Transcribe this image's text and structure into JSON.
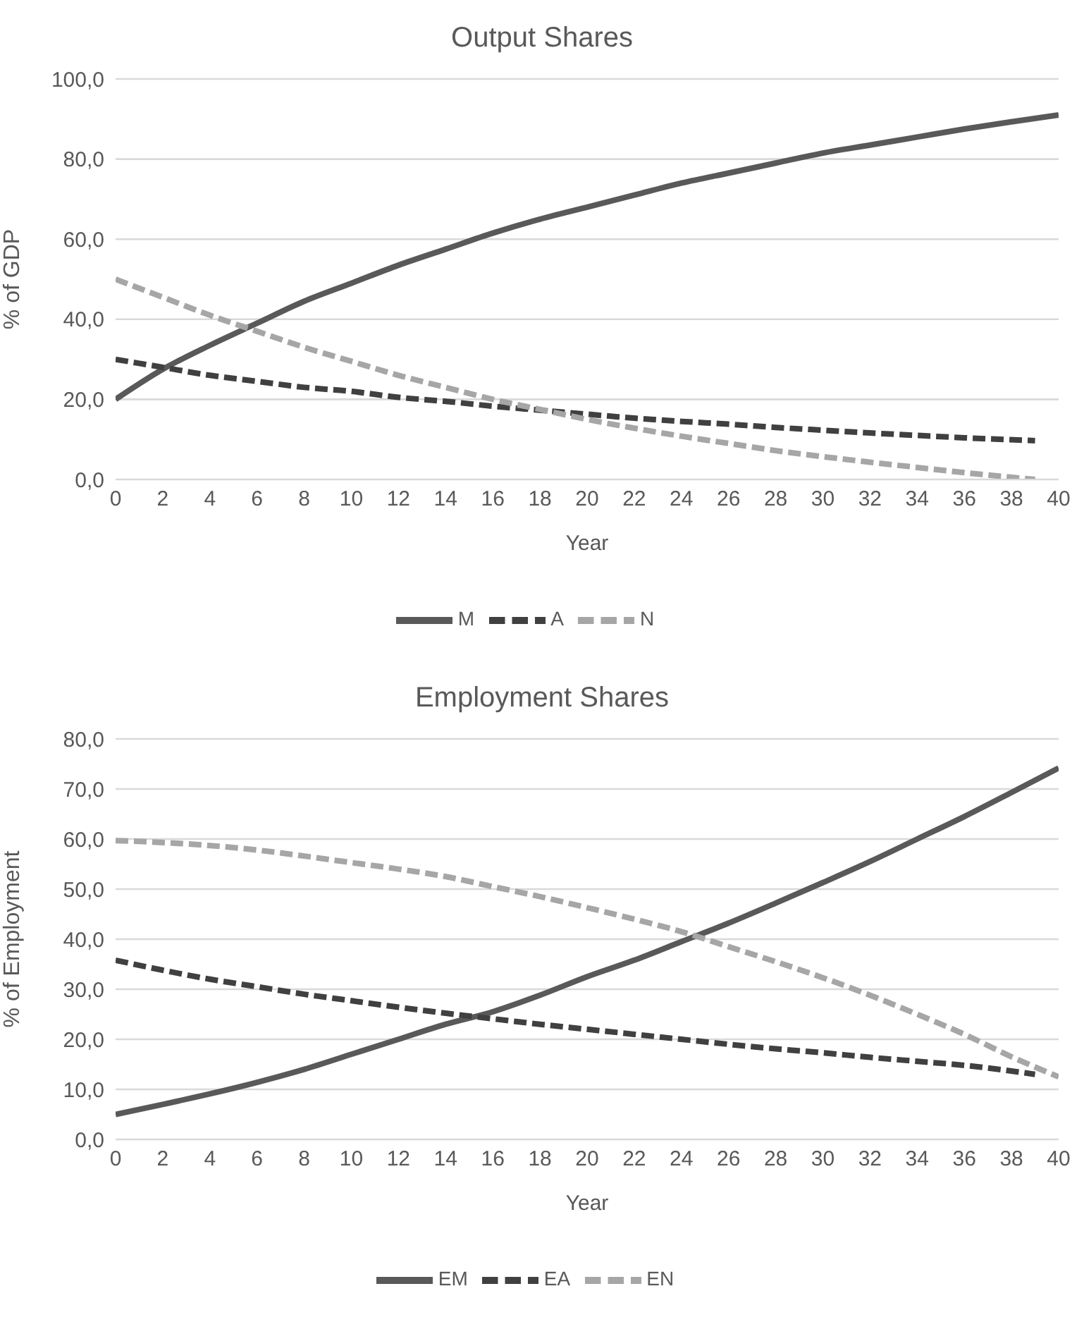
{
  "chart_data": [
    {
      "type": "line",
      "title": "Output Shares",
      "xlabel": "Year",
      "ylabel": "% of GDP",
      "xlim": [
        0,
        40
      ],
      "xticks": [
        0,
        2,
        4,
        6,
        8,
        10,
        12,
        14,
        16,
        18,
        20,
        22,
        24,
        26,
        28,
        30,
        32,
        34,
        36,
        38,
        40
      ],
      "ylim": [
        0,
        100
      ],
      "yticks": [
        {
          "value": 0,
          "label": "0,0"
        },
        {
          "value": 20,
          "label": "20,0"
        },
        {
          "value": 40,
          "label": "40,0"
        },
        {
          "value": 60,
          "label": "60,0"
        },
        {
          "value": 80,
          "label": "80,0"
        },
        {
          "value": 100,
          "label": "100,0"
        }
      ],
      "grid": "y",
      "legend": "bottom",
      "marker": "none",
      "series": [
        {
          "name": "M",
          "color": "#595959",
          "line_style": "solid",
          "x": [
            0,
            2,
            4,
            6,
            8,
            10,
            12,
            14,
            16,
            18,
            20,
            22,
            24,
            26,
            28,
            30,
            32,
            34,
            36,
            38,
            40
          ],
          "values": [
            20,
            27.5,
            33.5,
            39,
            44.5,
            49,
            53.5,
            57.5,
            61.5,
            65,
            68,
            71,
            74,
            76.5,
            79,
            81.5,
            83.5,
            85.5,
            87.5,
            89.3,
            91
          ]
        },
        {
          "name": "A",
          "color": "#404040",
          "line_style": "dashed",
          "x": [
            0,
            2,
            4,
            6,
            8,
            10,
            12,
            14,
            16,
            18,
            20,
            22,
            24,
            26,
            28,
            30,
            32,
            34,
            36,
            39
          ],
          "values": [
            30,
            28,
            26,
            24.5,
            23,
            22,
            20.5,
            19.5,
            18.3,
            17.3,
            16.3,
            15.3,
            14.5,
            13.8,
            13,
            12.3,
            11.6,
            11,
            10.4,
            9.7
          ]
        },
        {
          "name": "N",
          "color": "#a6a6a6",
          "line_style": "dashed",
          "x": [
            0,
            2,
            4,
            6,
            8,
            10,
            12,
            14,
            16,
            18,
            20,
            22,
            24,
            26,
            28,
            30,
            32,
            34,
            36,
            39
          ],
          "values": [
            50,
            45.5,
            41,
            37,
            33,
            29.5,
            26,
            23,
            20,
            17.5,
            15,
            12.8,
            10.8,
            9,
            7.2,
            5.7,
            4.3,
            3,
            1.7,
            0
          ]
        }
      ]
    },
    {
      "type": "line",
      "title": "Employment Shares",
      "xlabel": "Year",
      "ylabel": "% of Employment",
      "xlim": [
        0,
        40
      ],
      "xticks": [
        0,
        2,
        4,
        6,
        8,
        10,
        12,
        14,
        16,
        18,
        20,
        22,
        24,
        26,
        28,
        30,
        32,
        34,
        36,
        38,
        40
      ],
      "ylim": [
        0,
        80
      ],
      "yticks": [
        {
          "value": 0,
          "label": "0,0"
        },
        {
          "value": 10,
          "label": "10,0"
        },
        {
          "value": 20,
          "label": "20,0"
        },
        {
          "value": 30,
          "label": "30,0"
        },
        {
          "value": 40,
          "label": "40,0"
        },
        {
          "value": 50,
          "label": "50,0"
        },
        {
          "value": 60,
          "label": "60,0"
        },
        {
          "value": 70,
          "label": "70,0"
        },
        {
          "value": 80,
          "label": "80,0"
        }
      ],
      "grid": "y",
      "legend": "bottom",
      "marker": "none",
      "series": [
        {
          "name": "EM",
          "color": "#595959",
          "line_style": "solid",
          "x": [
            0,
            2,
            4,
            6,
            8,
            10,
            12,
            14,
            16,
            18,
            20,
            22,
            24,
            26,
            28,
            30,
            32,
            34,
            36,
            38,
            40
          ],
          "values": [
            5,
            7,
            9.1,
            11.4,
            14,
            17,
            20,
            23,
            25.5,
            28.8,
            32.5,
            35.8,
            39.5,
            43.2,
            47.2,
            51.3,
            55.5,
            60,
            64.5,
            69.3,
            74.2
          ]
        },
        {
          "name": "EA",
          "color": "#404040",
          "line_style": "dashed",
          "x": [
            0,
            2,
            4,
            6,
            8,
            10,
            12,
            14,
            16,
            18,
            20,
            22,
            24,
            26,
            28,
            30,
            32,
            34,
            36,
            39
          ],
          "values": [
            35.8,
            33.8,
            32,
            30.5,
            29,
            27.7,
            26.4,
            25.2,
            24.1,
            23,
            22,
            21,
            20,
            19,
            18.1,
            17.3,
            16.4,
            15.6,
            14.8,
            13
          ]
        },
        {
          "name": "EN",
          "color": "#a6a6a6",
          "line_style": "dashed",
          "x": [
            0,
            2,
            4,
            6,
            8,
            10,
            12,
            14,
            16,
            18,
            20,
            22,
            24,
            26,
            28,
            30,
            32,
            34,
            36,
            38,
            40
          ],
          "values": [
            59.7,
            59.3,
            58.7,
            57.8,
            56.6,
            55.3,
            54,
            52.5,
            50.5,
            48.5,
            46.3,
            44,
            41.5,
            38.5,
            35.5,
            32.3,
            28.8,
            25,
            21,
            16.5,
            12.5
          ]
        }
      ]
    }
  ]
}
